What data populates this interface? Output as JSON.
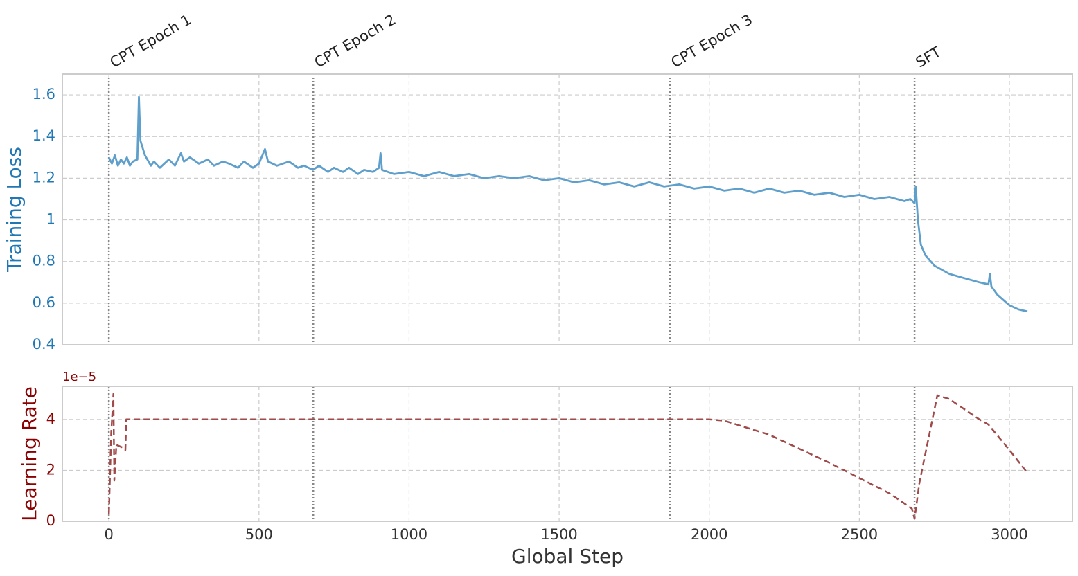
{
  "chart_data": [
    {
      "type": "line",
      "ylabel": "Training Loss",
      "label_color": "#1f77b4",
      "xlim": [
        -155,
        3210
      ],
      "xticks": [
        0,
        500,
        1000,
        1500,
        2000,
        2500,
        3000
      ],
      "ylim": [
        0.4,
        1.7
      ],
      "yticks": [
        0.4,
        0.6,
        0.8,
        1.0,
        1.2,
        1.4,
        1.6
      ],
      "grid": true,
      "annotations": [
        {
          "x": 0,
          "label": "CPT Epoch 1"
        },
        {
          "x": 681,
          "label": "CPT Epoch 2"
        },
        {
          "x": 1869,
          "label": "CPT Epoch 3"
        },
        {
          "x": 2684,
          "label": "SFT"
        }
      ],
      "series": [
        {
          "name": "Training Loss",
          "color": "#5f9fcb",
          "dash": false,
          "x": [
            0,
            10,
            20,
            30,
            40,
            50,
            60,
            70,
            80,
            95,
            100,
            105,
            120,
            140,
            150,
            170,
            200,
            220,
            240,
            250,
            270,
            300,
            330,
            350,
            380,
            400,
            430,
            450,
            480,
            500,
            520,
            530,
            560,
            600,
            630,
            650,
            680,
            700,
            730,
            750,
            780,
            800,
            830,
            850,
            880,
            900,
            905,
            910,
            950,
            1000,
            1050,
            1100,
            1150,
            1200,
            1250,
            1300,
            1350,
            1400,
            1450,
            1500,
            1550,
            1600,
            1650,
            1700,
            1750,
            1800,
            1850,
            1900,
            1950,
            2000,
            2050,
            2100,
            2150,
            2200,
            2250,
            2300,
            2350,
            2400,
            2450,
            2500,
            2550,
            2600,
            2650,
            2670,
            2684,
            2688,
            2695,
            2705,
            2720,
            2750,
            2800,
            2850,
            2900,
            2930,
            2935,
            2940,
            2960,
            3000,
            3030,
            3060
          ],
          "values": [
            1.3,
            1.27,
            1.31,
            1.26,
            1.29,
            1.27,
            1.3,
            1.26,
            1.28,
            1.29,
            1.59,
            1.38,
            1.31,
            1.26,
            1.28,
            1.25,
            1.29,
            1.26,
            1.32,
            1.28,
            1.3,
            1.27,
            1.29,
            1.26,
            1.28,
            1.27,
            1.25,
            1.28,
            1.25,
            1.27,
            1.34,
            1.28,
            1.26,
            1.28,
            1.25,
            1.26,
            1.24,
            1.26,
            1.23,
            1.25,
            1.23,
            1.25,
            1.22,
            1.24,
            1.23,
            1.25,
            1.32,
            1.24,
            1.22,
            1.23,
            1.21,
            1.23,
            1.21,
            1.22,
            1.2,
            1.21,
            1.2,
            1.21,
            1.19,
            1.2,
            1.18,
            1.19,
            1.17,
            1.18,
            1.16,
            1.18,
            1.16,
            1.17,
            1.15,
            1.16,
            1.14,
            1.15,
            1.13,
            1.15,
            1.13,
            1.14,
            1.12,
            1.13,
            1.11,
            1.12,
            1.1,
            1.11,
            1.09,
            1.1,
            1.08,
            1.16,
            1.0,
            0.88,
            0.83,
            0.78,
            0.74,
            0.72,
            0.7,
            0.69,
            0.74,
            0.68,
            0.64,
            0.59,
            0.57,
            0.56
          ]
        }
      ]
    },
    {
      "type": "line",
      "ylabel": "Learning Rate",
      "xlabel": "Global Step",
      "label_color": "#8b0000",
      "offset_label": "1e−5",
      "xlim": [
        -155,
        3210
      ],
      "xticks": [
        0,
        500,
        1000,
        1500,
        2000,
        2500,
        3000
      ],
      "ylim": [
        0,
        5.3
      ],
      "yticks": [
        0,
        2,
        4
      ],
      "grid": true,
      "series": [
        {
          "name": "Learning Rate",
          "color": "#a04a4a",
          "dash": true,
          "x": [
            0,
            8,
            15,
            18,
            25,
            45,
            55,
            58,
            2000,
            2050,
            2200,
            2400,
            2600,
            2675,
            2684,
            2700,
            2760,
            2800,
            2900,
            2930,
            3000,
            3060
          ],
          "values": [
            0.3,
            3.5,
            5.0,
            1.6,
            3.0,
            2.9,
            2.8,
            4.0,
            4.0,
            3.95,
            3.4,
            2.3,
            1.1,
            0.5,
            0.1,
            1.5,
            4.95,
            4.8,
            4.0,
            3.8,
            2.8,
            1.9
          ]
        }
      ]
    }
  ]
}
